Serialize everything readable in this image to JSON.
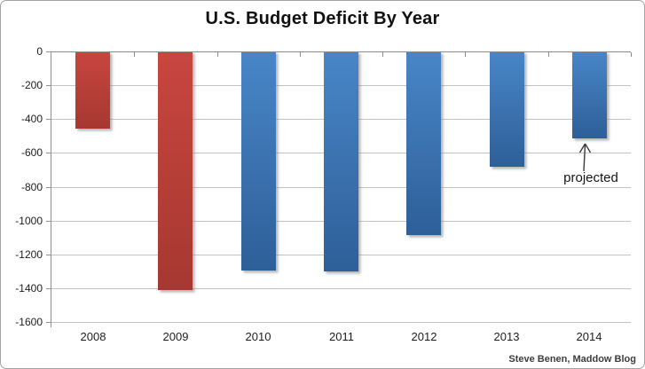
{
  "title": "U.S. Budget Deficit By Year",
  "credit": "Steve Benen, Maddow Blog",
  "colors": {
    "red_bar_top": "#c8463f",
    "red_bar_bottom": "#a63831",
    "blue_bar_top": "#4886c8",
    "blue_bar_bottom": "#2e5f98",
    "gridline": "#c3c3c3",
    "zero_line": "#8a8a8a",
    "axis_line": "#8f8f8f",
    "label_text": "#1d1d1d",
    "credit_text": "#3d3d3d"
  },
  "chart_data": {
    "type": "bar",
    "title": "U.S. Budget Deficit By Year",
    "categories": [
      "2008",
      "2009",
      "2010",
      "2011",
      "2012",
      "2013",
      "2014"
    ],
    "values": [
      -459,
      -1413,
      -1294,
      -1300,
      -1087,
      -680,
      -514
    ],
    "bar_colors": [
      "red",
      "red",
      "blue",
      "blue",
      "blue",
      "blue",
      "blue"
    ],
    "xlabel": "",
    "ylabel": "",
    "ylim": [
      -1600,
      0
    ],
    "yticks": [
      0,
      -200,
      -400,
      -600,
      -800,
      -1000,
      -1200,
      -1400,
      -1600
    ],
    "grid": true,
    "legend": "none",
    "annotations": [
      {
        "text": "projected",
        "category": "2014"
      }
    ]
  }
}
